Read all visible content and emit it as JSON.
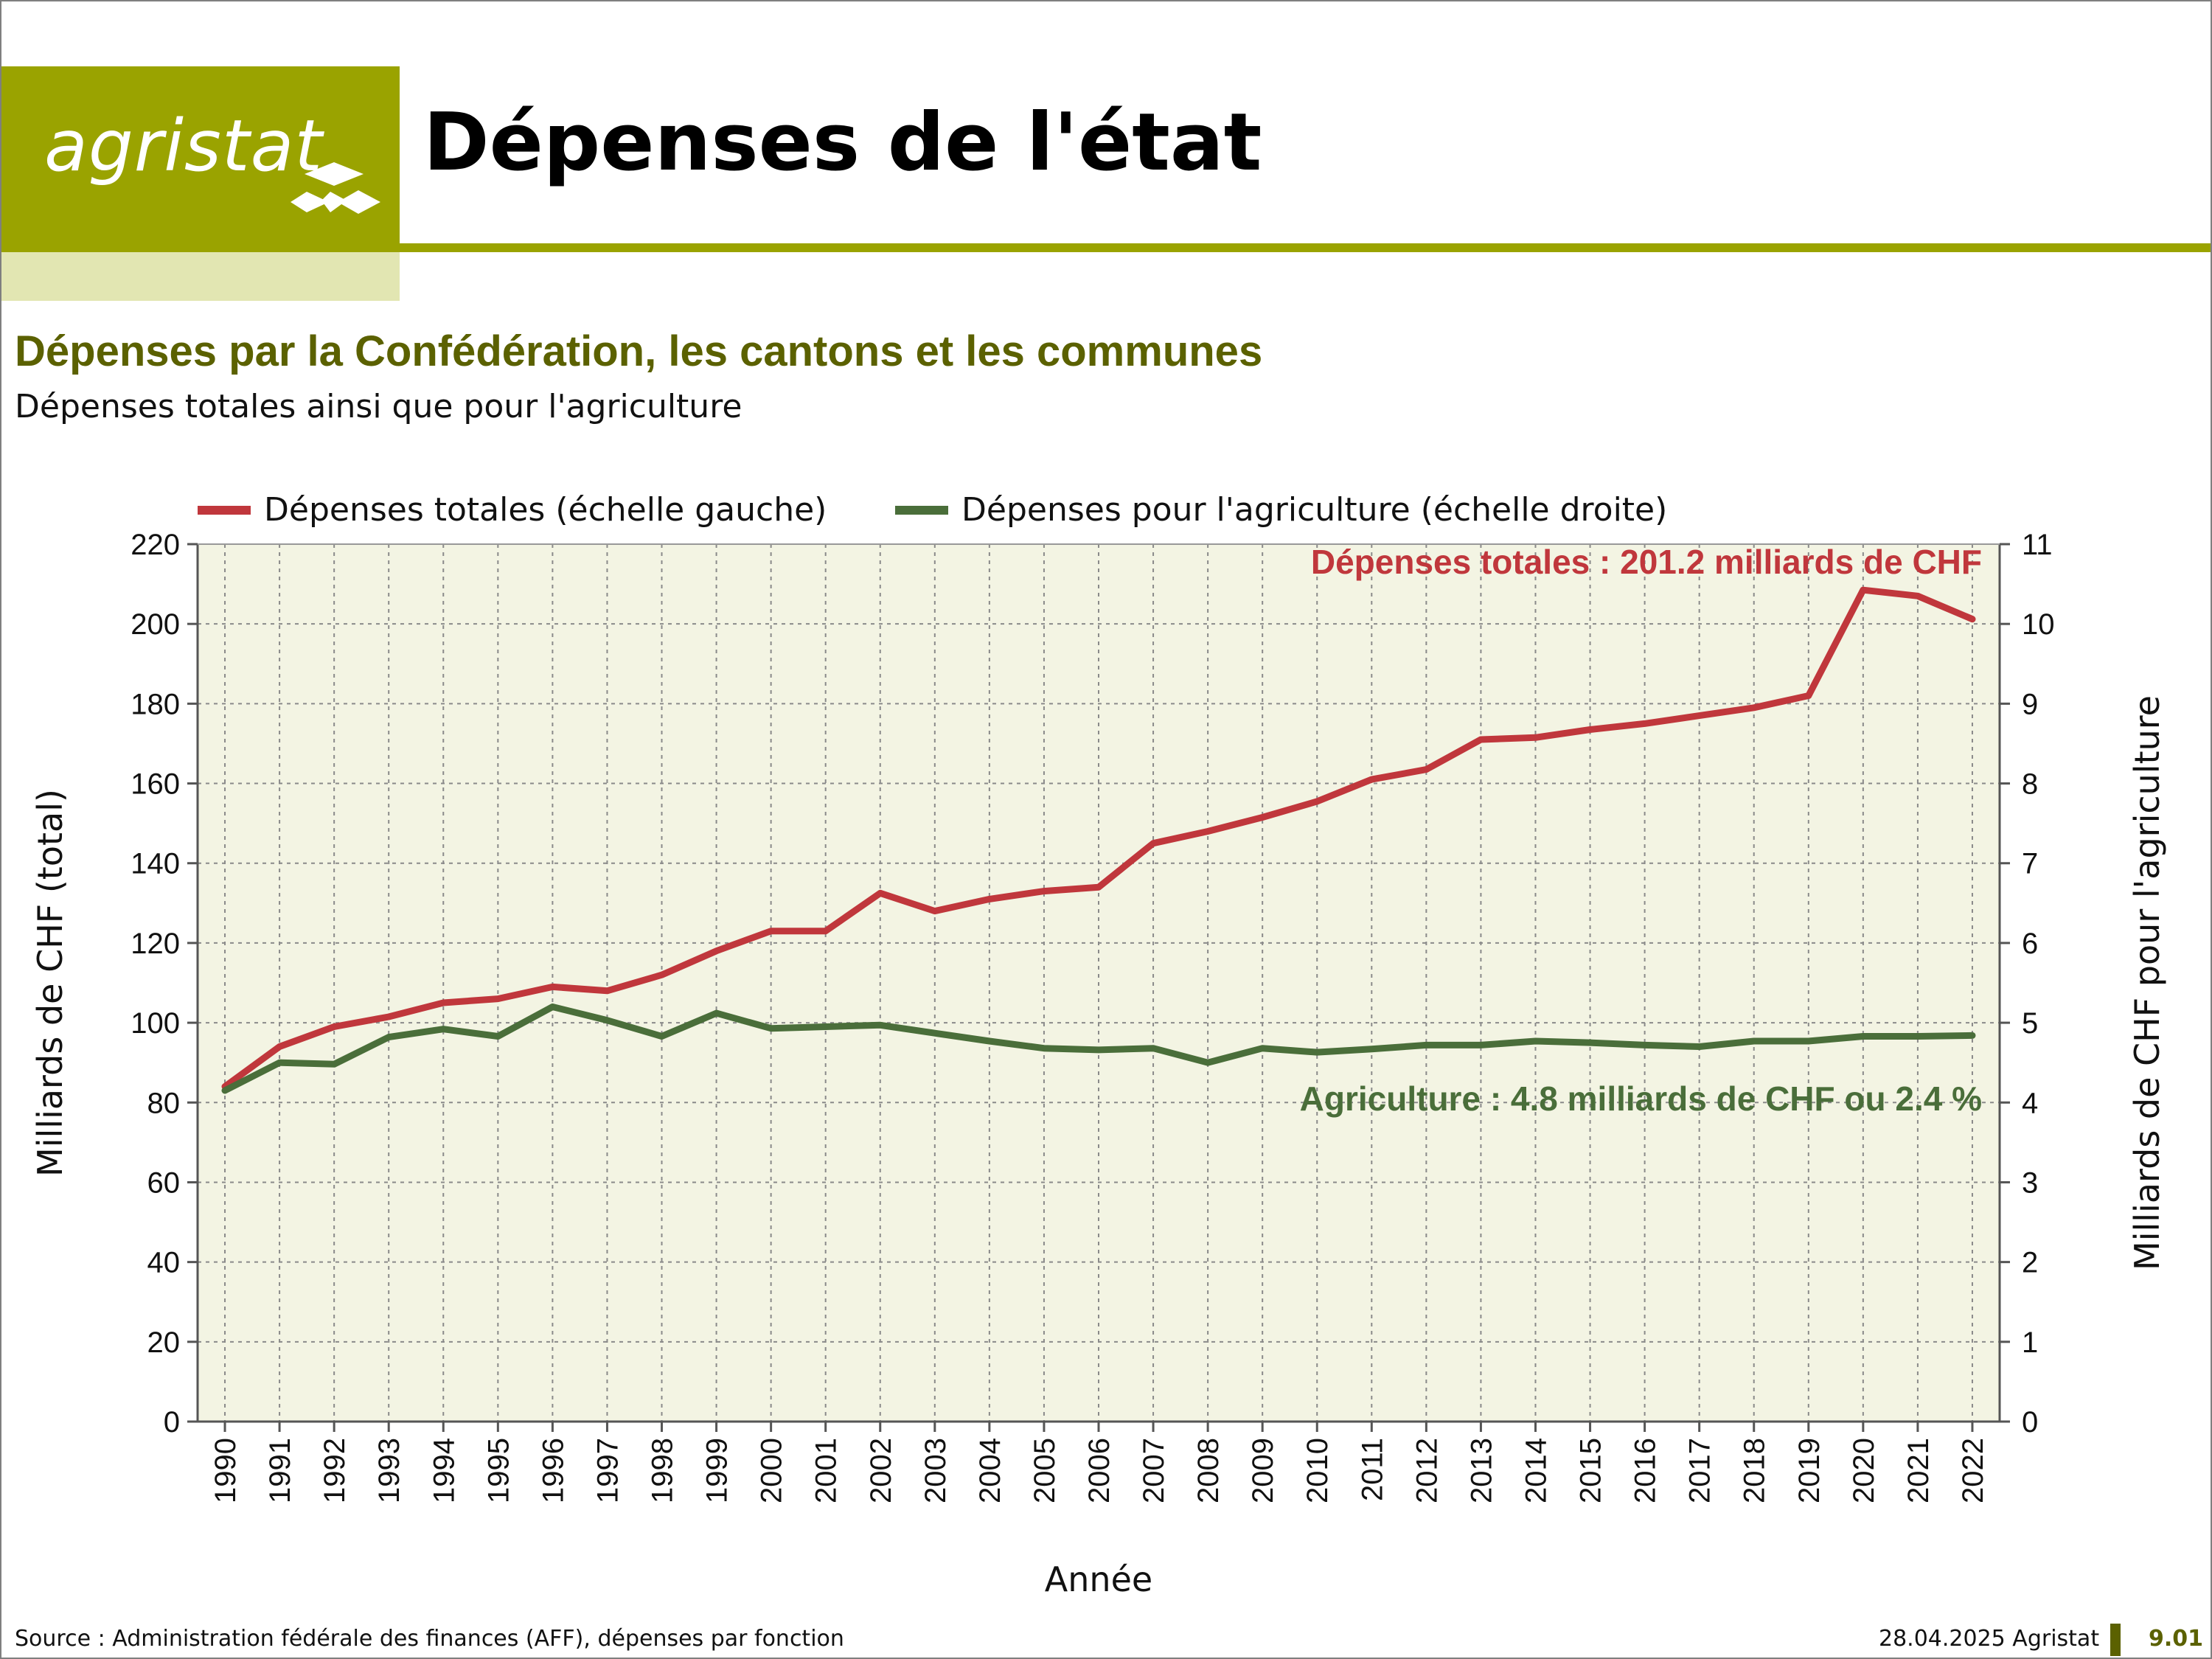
{
  "header": {
    "logo_text": "agristat",
    "title": "Dépenses de l'état"
  },
  "subtitle": {
    "main": "Dépenses par la Confédération, les cantons et les communes",
    "secondary": "Dépenses totales ainsi que pour l'agriculture"
  },
  "footer": {
    "source": "Source : Administration fédérale des finances (AFF), dépenses par fonction",
    "date": "28.04.2025 Agristat",
    "page_number": "9.01"
  },
  "chart_data": {
    "type": "line",
    "title": "",
    "xlabel": "Année",
    "ylabel_left": "Milliards de CHF (total)",
    "ylabel_right": "Milliards de CHF pour l'agriculture",
    "ylim_left": [
      0,
      220
    ],
    "ylim_right": [
      0,
      11
    ],
    "yticks_left": [
      "0",
      "20",
      "40",
      "60",
      "80",
      "100",
      "120",
      "140",
      "160",
      "180",
      "200",
      "220"
    ],
    "yticks_right": [
      "0",
      "1",
      "2",
      "3",
      "4",
      "5",
      "6",
      "7",
      "8",
      "9",
      "10",
      "11"
    ],
    "grid": true,
    "legend_position": "top",
    "categories": [
      "1990",
      "1991",
      "1992",
      "1993",
      "1994",
      "1995",
      "1996",
      "1997",
      "1998",
      "1999",
      "2000",
      "2001",
      "2002",
      "2003",
      "2004",
      "2005",
      "2006",
      "2007",
      "2008",
      "2009",
      "2010",
      "2011",
      "2012",
      "2013",
      "2014",
      "2015",
      "2016",
      "2017",
      "2018",
      "2019",
      "2020",
      "2021",
      "2022"
    ],
    "series": [
      {
        "name": "Dépenses totales (échelle gauche)",
        "axis": "left",
        "color": "#c0373c",
        "values": [
          84,
          94,
          99,
          101.5,
          105,
          106,
          109,
          108,
          112,
          118,
          123,
          123,
          132.5,
          128,
          131,
          133,
          134,
          145,
          148,
          151.5,
          155.5,
          161,
          163.5,
          171,
          171.5,
          173.5,
          175,
          177,
          179,
          182,
          208.5,
          207,
          201.2
        ]
      },
      {
        "name": "Dépenses pour l'agriculture (échelle droite)",
        "axis": "right",
        "color": "#4a6e3a",
        "values": [
          4.15,
          4.5,
          4.48,
          4.82,
          4.92,
          4.83,
          5.2,
          5.03,
          4.83,
          5.12,
          4.93,
          4.95,
          4.97,
          4.87,
          4.77,
          4.68,
          4.66,
          4.68,
          4.5,
          4.68,
          4.63,
          4.67,
          4.72,
          4.72,
          4.77,
          4.75,
          4.72,
          4.7,
          4.77,
          4.77,
          4.83,
          4.83,
          4.84
        ]
      }
    ],
    "annotations": [
      {
        "text": "Dépenses totales : 201.2 milliards de CHF",
        "color": "#c0373c"
      },
      {
        "text": "Agriculture : 4.8 milliards de CHF ou 2.4 %",
        "color": "#4a6e3a"
      }
    ],
    "colors": {
      "plot_background": "#f3f4e3",
      "grid": "#8a8a8a",
      "brand": "#9aa300"
    }
  }
}
